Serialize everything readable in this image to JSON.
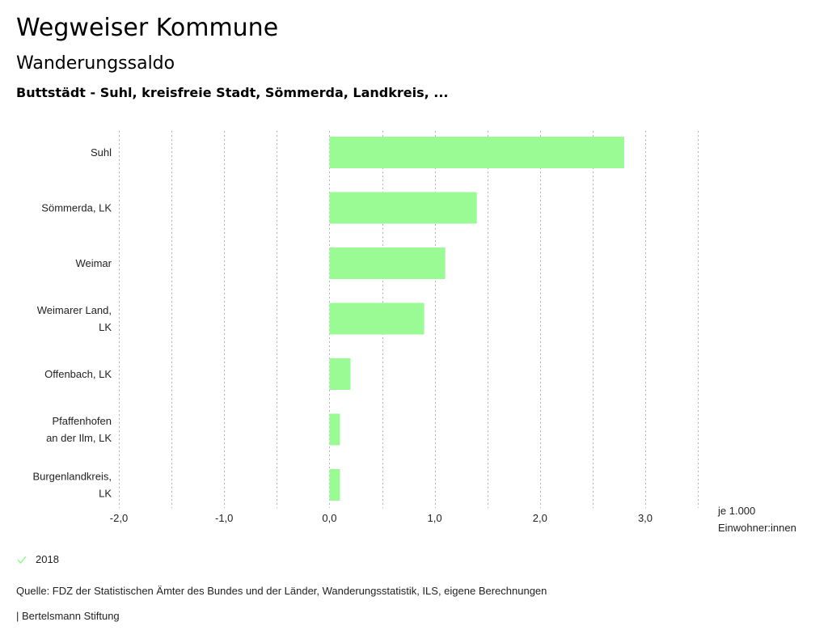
{
  "header": {
    "title": "Wegweiser Kommune",
    "subtitle": "Wanderungssaldo",
    "region": "Buttstädt - Suhl, kreisfreie Stadt, Sömmerda, Landkreis, ..."
  },
  "chart_data": {
    "type": "bar",
    "orientation": "horizontal",
    "title": "Wanderungssaldo",
    "xlabel": "je 1.000 Einwohner:innen",
    "ylabel": "",
    "categories": [
      [
        "Suhl"
      ],
      [
        "Sömmerda, LK"
      ],
      [
        "Weimar"
      ],
      [
        "Weimarer Land,",
        "LK"
      ],
      [
        "Offenbach, LK"
      ],
      [
        "Pfaffenhofen",
        "an der Ilm, LK"
      ],
      [
        "Burgenlandkreis,",
        "LK"
      ]
    ],
    "series": [
      {
        "name": "2018",
        "color": "#9afa94",
        "values": [
          2.8,
          1.4,
          1.1,
          0.9,
          0.2,
          0.1,
          0.1
        ]
      }
    ],
    "xlim": [
      -2.0,
      3.5
    ],
    "xticks": [
      -2.0,
      -1.0,
      0.0,
      1.0,
      2.0,
      3.0
    ],
    "xtick_labels": [
      "-2,0",
      "-1,0",
      "0,0",
      "1,0",
      "2,0",
      "3,0"
    ],
    "gridlines": [
      -2.0,
      -1.5,
      -1.0,
      -0.5,
      0.0,
      0.5,
      1.0,
      1.5,
      2.0,
      2.5,
      3.0,
      3.5
    ],
    "grid": true,
    "grid_style": "dotted",
    "legend_position": "bottom-left"
  },
  "axis": {
    "unit_line1": "je 1.000",
    "unit_line2": "Einwohner:innen"
  },
  "legend": {
    "items": [
      {
        "label": "2018",
        "color": "#9afa94",
        "icon": "check-icon"
      }
    ]
  },
  "footer": {
    "source": "Quelle: FDZ der Statistischen Ämter des Bundes und der Länder, Wanderungsstatistik, ILS, eigene Berechnungen",
    "credit": "| Bertelsmann Stiftung"
  }
}
